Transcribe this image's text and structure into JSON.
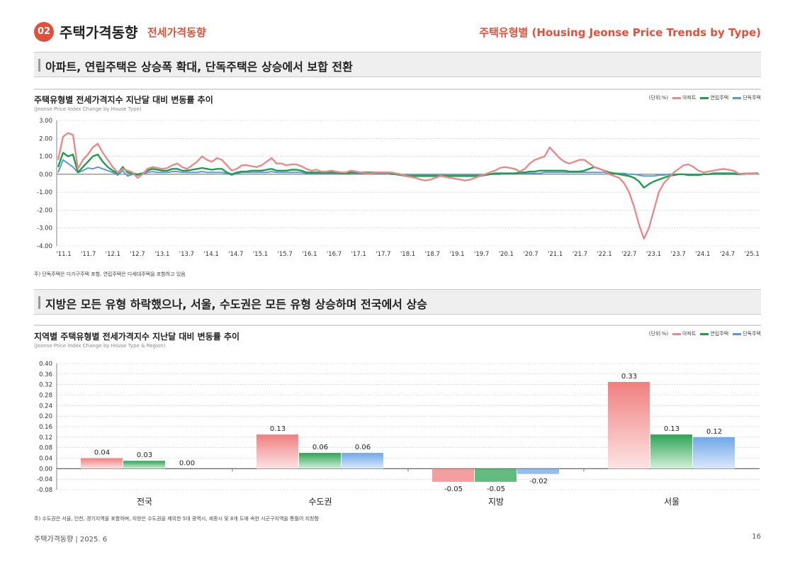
{
  "header": {
    "badge": "02",
    "title": "주택가격동향",
    "subtitle": "전세가격동향",
    "right_title": "주택유형별 (Housing Jeonse Price Trends by Type)"
  },
  "section1": {
    "banner": "아파트, 연립주택은 상승폭 확대, 단독주택은 상승에서 보합 전환",
    "chart_title": "주택유형별 전세가격지수 지난달 대비 변동률 추이",
    "chart_subtitle": "(Jeonse Price Index Change by House Type)",
    "unit": "(단위:%)",
    "legend": [
      "아파트",
      "연립주택",
      "단독주택"
    ],
    "note": "주) 단독주택은 다가구주택 포함, 연립주택은 다세대주택을 포함하고 있음"
  },
  "section2": {
    "banner": "지방은 모든 유형 하락했으나, 서울, 수도권은 모든 유형 상승하며 전국에서 상승",
    "chart_title": "지역별 주택유형별 전세가격지수 지난달 대비 변동률 추이",
    "chart_subtitle": "(Jeonse Price Index Change by House Type & Region)",
    "unit": "(단위:%)",
    "legend": [
      "아파트",
      "연립주택",
      "단독주택"
    ],
    "note": "주) 수도권은 서울, 인천, 경기지역을 포함하며, 지방은 수도권을 제외한 5대 광역시, 세종시 및 8개 도에 속한 시군구지역을 통틀어 지칭함"
  },
  "footer": {
    "left": "주택가격동향    |    2025. 6",
    "page": "16"
  },
  "colors": {
    "apt": "#e88a8a",
    "row": "#1e9e48",
    "det": "#5b9bd5",
    "accent": "#e0503a"
  },
  "chart_data": [
    {
      "type": "line",
      "ylim": [
        -4.0,
        3.0
      ],
      "yticks": [
        "3.00",
        "2.00",
        "1.00",
        "0.00",
        "-1.00",
        "-2.00",
        "-3.00",
        "-4.00"
      ],
      "x_tick_labels": [
        "'11.1",
        "'11.7",
        "'12.1",
        "'12.7",
        "'13.1",
        "'13.7",
        "'14.1",
        "'14.7",
        "'15.1",
        "'15.7",
        "'16.1",
        "'16.7",
        "'17.1",
        "'17.7",
        "'18.1",
        "'18.7",
        "'19.1",
        "'19.7",
        "'20.1",
        "'20.7",
        "'21.1",
        "'21.7",
        "'22.1",
        "'22.7",
        "'23.1",
        "'23.7",
        "'24.1",
        "'24.7",
        "'25.1"
      ],
      "grid": true,
      "series": [
        {
          "name": "아파트",
          "values": [
            0.8,
            2.1,
            2.3,
            2.2,
            0.3,
            0.8,
            1.1,
            1.5,
            1.7,
            1.2,
            0.8,
            0.4,
            0.1,
            0.3,
            0.2,
            0.1,
            -0.2,
            0.0,
            0.3,
            0.4,
            0.35,
            0.3,
            0.35,
            0.5,
            0.6,
            0.4,
            0.3,
            0.5,
            0.7,
            1.0,
            0.8,
            0.7,
            0.9,
            0.8,
            0.5,
            0.2,
            0.3,
            0.5,
            0.5,
            0.45,
            0.4,
            0.5,
            0.7,
            0.9,
            0.6,
            0.6,
            0.5,
            0.55,
            0.55,
            0.45,
            0.3,
            0.2,
            0.25,
            0.15,
            0.15,
            0.2,
            0.15,
            0.1,
            0.1,
            0.2,
            0.15,
            0.1,
            0.05,
            0.05,
            0.1,
            0.1,
            0.1,
            0.1,
            0.05,
            0.0,
            -0.1,
            -0.15,
            -0.2,
            -0.3,
            -0.35,
            -0.3,
            -0.2,
            -0.1,
            -0.15,
            -0.2,
            -0.25,
            -0.3,
            -0.35,
            -0.3,
            -0.2,
            -0.1,
            0.0,
            0.1,
            0.2,
            0.35,
            0.4,
            0.35,
            0.3,
            0.15,
            0.3,
            0.6,
            0.8,
            0.9,
            1.0,
            1.5,
            1.2,
            0.9,
            0.7,
            0.6,
            0.7,
            0.8,
            0.8,
            0.6,
            0.4,
            0.3,
            0.2,
            0.0,
            -0.1,
            -0.2,
            -0.5,
            -1.0,
            -1.8,
            -2.8,
            -3.6,
            -3.0,
            -2.0,
            -1.0,
            -0.5,
            -0.2,
            0.1,
            0.3,
            0.5,
            0.55,
            0.4,
            0.2,
            0.1,
            0.15,
            0.2,
            0.25,
            0.3,
            0.25,
            0.2,
            0.05,
            0.0,
            0.05,
            0.05,
            0.0
          ]
        },
        {
          "name": "연립주택",
          "values": [
            0.4,
            1.2,
            1.0,
            1.1,
            0.1,
            0.4,
            0.7,
            1.0,
            1.1,
            0.7,
            0.4,
            0.2,
            0.05,
            0.4,
            0.1,
            0.05,
            0.0,
            0.05,
            0.2,
            0.3,
            0.25,
            0.2,
            0.2,
            0.3,
            0.3,
            0.2,
            0.2,
            0.25,
            0.3,
            0.35,
            0.3,
            0.25,
            0.3,
            0.3,
            0.1,
            0.0,
            0.1,
            0.15,
            0.15,
            0.2,
            0.2,
            0.2,
            0.25,
            0.3,
            0.2,
            0.2,
            0.2,
            0.25,
            0.25,
            0.2,
            0.1,
            0.1,
            0.1,
            0.1,
            0.1,
            0.1,
            0.1,
            0.05,
            0.05,
            0.1,
            0.1,
            0.1,
            0.1,
            0.1,
            0.1,
            0.1,
            0.1,
            0.05,
            0.0,
            -0.05,
            -0.1,
            -0.1,
            -0.1,
            -0.1,
            -0.1,
            -0.1,
            -0.1,
            -0.1,
            -0.1,
            -0.1,
            -0.1,
            -0.1,
            -0.1,
            -0.1,
            -0.1,
            -0.1,
            -0.05,
            0.0,
            0.05,
            0.05,
            0.05,
            0.05,
            0.05,
            0.1,
            0.1,
            0.15,
            0.15,
            0.2,
            0.2,
            0.2,
            0.2,
            0.2,
            0.2,
            0.15,
            0.15,
            0.15,
            0.2,
            0.3,
            0.4,
            0.3,
            0.2,
            0.1,
            0.05,
            0.0,
            -0.05,
            -0.1,
            -0.2,
            -0.4,
            -0.75,
            -0.55,
            -0.4,
            -0.3,
            -0.2,
            -0.1,
            -0.05,
            0.0,
            0.0,
            -0.05,
            -0.05,
            -0.05,
            0.0,
            0.0,
            0.05,
            0.05,
            0.05,
            0.05,
            0.05,
            0.0,
            0.0,
            0.05,
            0.05,
            0.05
          ]
        },
        {
          "name": "단독주택",
          "values": [
            0.1,
            0.8,
            0.6,
            0.4,
            0.1,
            0.2,
            0.35,
            0.3,
            0.4,
            0.3,
            0.2,
            0.1,
            -0.05,
            0.2,
            -0.1,
            0.0,
            -0.05,
            0.0,
            0.1,
            0.15,
            0.1,
            0.1,
            0.1,
            0.15,
            0.15,
            0.1,
            0.1,
            0.1,
            0.1,
            0.15,
            0.1,
            0.1,
            0.1,
            0.1,
            0.05,
            -0.05,
            0.05,
            0.1,
            0.1,
            0.1,
            0.1,
            0.1,
            0.1,
            0.15,
            0.1,
            0.1,
            0.1,
            0.1,
            0.1,
            0.1,
            0.05,
            0.05,
            0.05,
            0.05,
            0.05,
            0.05,
            0.05,
            0.05,
            0.05,
            0.05,
            0.05,
            0.05,
            0.05,
            0.05,
            0.05,
            0.05,
            0.05,
            0.0,
            0.0,
            0.0,
            -0.05,
            -0.05,
            -0.05,
            -0.05,
            -0.05,
            -0.05,
            -0.05,
            -0.05,
            -0.05,
            -0.05,
            -0.05,
            -0.05,
            -0.05,
            -0.05,
            -0.05,
            -0.05,
            0.0,
            0.0,
            0.0,
            0.0,
            0.05,
            0.05,
            0.05,
            0.05,
            0.05,
            0.05,
            0.05,
            0.05,
            0.1,
            0.1,
            0.1,
            0.1,
            0.1,
            0.1,
            0.1,
            0.1,
            0.1,
            0.1,
            0.1,
            0.1,
            0.1,
            0.05,
            0.05,
            0.05,
            0.05,
            0.0,
            0.0,
            -0.05,
            -0.1,
            -0.1,
            -0.1,
            -0.05,
            -0.05,
            0.0,
            0.0,
            0.0,
            0.0,
            0.0,
            0.0,
            0.0,
            0.0,
            0.0,
            0.0,
            0.0,
            0.0,
            0.0,
            0.0,
            0.0,
            0.05,
            0.05,
            0.05,
            0.05
          ]
        }
      ]
    },
    {
      "type": "bar",
      "categories": [
        "전국",
        "수도권",
        "지방",
        "서울"
      ],
      "ylim": [
        -0.08,
        0.4
      ],
      "yticks": [
        "0.40",
        "0.36",
        "0.32",
        "0.28",
        "0.24",
        "0.20",
        "0.16",
        "0.12",
        "0.08",
        "0.04",
        "0.00",
        "-0.04",
        "-0.08"
      ],
      "grid": true,
      "series": [
        {
          "name": "아파트",
          "values": [
            0.04,
            0.13,
            -0.05,
            0.33
          ],
          "labels": [
            "0.04",
            "0.13",
            "-0.05",
            "0.33"
          ]
        },
        {
          "name": "연립주택",
          "values": [
            0.03,
            0.06,
            -0.05,
            0.13
          ],
          "labels": [
            "0.03",
            "0.06",
            "-0.05",
            "0.13"
          ]
        },
        {
          "name": "단독주택",
          "values": [
            0.0,
            0.06,
            -0.02,
            0.12
          ],
          "labels": [
            "0.00",
            "0.06",
            "-0.02",
            "0.12"
          ]
        }
      ]
    }
  ]
}
